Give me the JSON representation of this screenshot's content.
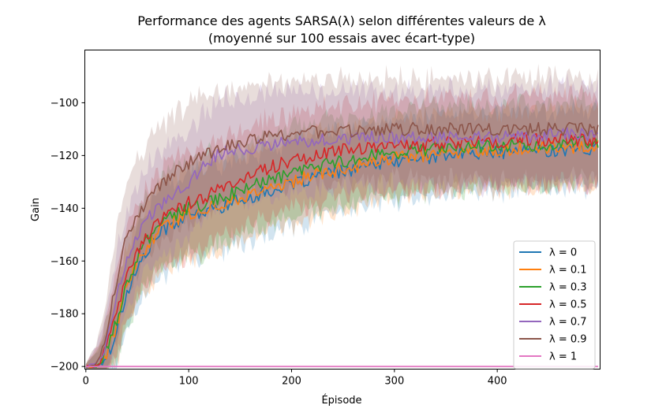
{
  "chart_data": {
    "type": "line",
    "title": "Performance des agents SARSA(λ) selon différentes valeurs de λ",
    "subtitle": "(moyenné sur 100 essais avec écart-type)",
    "xlabel": "Épisode",
    "ylabel": "Gain",
    "xlim": [
      -1,
      500
    ],
    "ylim": [
      -201,
      -80
    ],
    "xticks": [
      0,
      100,
      200,
      300,
      400
    ],
    "yticks": [
      -200,
      -180,
      -160,
      -140,
      -120,
      -100
    ],
    "grid": false,
    "legend_position": "lower-right",
    "shaded_band": "standard deviation",
    "series": [
      {
        "name": "λ = 0",
        "color": "#1f77b4",
        "points": [
          [
            0,
            -200
          ],
          [
            10,
            -200
          ],
          [
            15,
            -199
          ],
          [
            20,
            -196
          ],
          [
            25,
            -192
          ],
          [
            30,
            -186
          ],
          [
            35,
            -179
          ],
          [
            40,
            -172
          ],
          [
            50,
            -163
          ],
          [
            60,
            -156
          ],
          [
            70,
            -150
          ],
          [
            80,
            -147
          ],
          [
            100,
            -143
          ],
          [
            120,
            -141
          ],
          [
            150,
            -137
          ],
          [
            175,
            -134
          ],
          [
            200,
            -131
          ],
          [
            225,
            -128
          ],
          [
            250,
            -126
          ],
          [
            275,
            -124
          ],
          [
            300,
            -122
          ],
          [
            325,
            -121
          ],
          [
            350,
            -120
          ],
          [
            375,
            -119
          ],
          [
            400,
            -119
          ],
          [
            425,
            -118
          ],
          [
            450,
            -118
          ],
          [
            475,
            -118
          ],
          [
            499,
            -117
          ]
        ],
        "std": [
          [
            0,
            1
          ],
          [
            30,
            14
          ],
          [
            60,
            16
          ],
          [
            100,
            17
          ],
          [
            200,
            16
          ],
          [
            300,
            15
          ],
          [
            400,
            15
          ],
          [
            499,
            15
          ]
        ]
      },
      {
        "name": "λ = 0.1",
        "color": "#ff7f0e",
        "points": [
          [
            0,
            -200
          ],
          [
            10,
            -200
          ],
          [
            15,
            -199
          ],
          [
            20,
            -195
          ],
          [
            25,
            -190
          ],
          [
            30,
            -184
          ],
          [
            35,
            -177
          ],
          [
            40,
            -170
          ],
          [
            50,
            -161
          ],
          [
            60,
            -154
          ],
          [
            70,
            -149
          ],
          [
            80,
            -146
          ],
          [
            100,
            -142
          ],
          [
            120,
            -140
          ],
          [
            150,
            -136
          ],
          [
            175,
            -133
          ],
          [
            200,
            -130
          ],
          [
            225,
            -127
          ],
          [
            250,
            -125
          ],
          [
            275,
            -123
          ],
          [
            300,
            -121
          ],
          [
            325,
            -120
          ],
          [
            350,
            -119
          ],
          [
            375,
            -118
          ],
          [
            400,
            -118
          ],
          [
            425,
            -117
          ],
          [
            450,
            -117
          ],
          [
            475,
            -117
          ],
          [
            499,
            -116
          ]
        ],
        "std": [
          [
            0,
            1
          ],
          [
            30,
            14
          ],
          [
            60,
            16
          ],
          [
            100,
            17
          ],
          [
            200,
            16
          ],
          [
            300,
            15
          ],
          [
            400,
            15
          ],
          [
            499,
            15
          ]
        ]
      },
      {
        "name": "λ = 0.3",
        "color": "#2ca02c",
        "points": [
          [
            0,
            -200
          ],
          [
            10,
            -200
          ],
          [
            15,
            -198
          ],
          [
            20,
            -194
          ],
          [
            25,
            -188
          ],
          [
            30,
            -182
          ],
          [
            35,
            -175
          ],
          [
            40,
            -168
          ],
          [
            50,
            -159
          ],
          [
            60,
            -152
          ],
          [
            70,
            -147
          ],
          [
            80,
            -144
          ],
          [
            100,
            -140
          ],
          [
            120,
            -138
          ],
          [
            150,
            -133
          ],
          [
            175,
            -130
          ],
          [
            200,
            -127
          ],
          [
            225,
            -124
          ],
          [
            250,
            -122
          ],
          [
            275,
            -120
          ],
          [
            300,
            -119
          ],
          [
            325,
            -118
          ],
          [
            350,
            -117
          ],
          [
            375,
            -117
          ],
          [
            400,
            -116
          ],
          [
            425,
            -116
          ],
          [
            450,
            -116
          ],
          [
            475,
            -115
          ],
          [
            499,
            -115
          ]
        ],
        "std": [
          [
            0,
            1
          ],
          [
            30,
            15
          ],
          [
            60,
            17
          ],
          [
            100,
            18
          ],
          [
            200,
            17
          ],
          [
            300,
            16
          ],
          [
            400,
            16
          ],
          [
            499,
            16
          ]
        ]
      },
      {
        "name": "λ = 0.5",
        "color": "#d62728",
        "points": [
          [
            0,
            -200
          ],
          [
            10,
            -200
          ],
          [
            15,
            -198
          ],
          [
            20,
            -193
          ],
          [
            25,
            -186
          ],
          [
            30,
            -179
          ],
          [
            35,
            -172
          ],
          [
            40,
            -165
          ],
          [
            50,
            -156
          ],
          [
            60,
            -150
          ],
          [
            70,
            -145
          ],
          [
            80,
            -142
          ],
          [
            100,
            -138
          ],
          [
            120,
            -135
          ],
          [
            150,
            -129
          ],
          [
            175,
            -125
          ],
          [
            200,
            -122
          ],
          [
            225,
            -120
          ],
          [
            250,
            -118
          ],
          [
            275,
            -117
          ],
          [
            300,
            -116
          ],
          [
            325,
            -116
          ],
          [
            350,
            -115
          ],
          [
            375,
            -115
          ],
          [
            400,
            -115
          ],
          [
            425,
            -114
          ],
          [
            450,
            -114
          ],
          [
            475,
            -114
          ],
          [
            499,
            -114
          ]
        ],
        "std": [
          [
            0,
            1
          ],
          [
            30,
            16
          ],
          [
            60,
            18
          ],
          [
            100,
            19
          ],
          [
            200,
            18
          ],
          [
            300,
            17
          ],
          [
            400,
            17
          ],
          [
            499,
            17
          ]
        ]
      },
      {
        "name": "λ = 0.7",
        "color": "#9467bd",
        "points": [
          [
            0,
            -200
          ],
          [
            10,
            -199
          ],
          [
            15,
            -196
          ],
          [
            20,
            -190
          ],
          [
            25,
            -182
          ],
          [
            30,
            -174
          ],
          [
            35,
            -166
          ],
          [
            40,
            -159
          ],
          [
            50,
            -150
          ],
          [
            60,
            -144
          ],
          [
            70,
            -140
          ],
          [
            80,
            -136
          ],
          [
            100,
            -130
          ],
          [
            110,
            -126
          ],
          [
            120,
            -122
          ],
          [
            130,
            -119
          ],
          [
            150,
            -118
          ],
          [
            175,
            -116
          ],
          [
            200,
            -115
          ],
          [
            225,
            -114
          ],
          [
            250,
            -114
          ],
          [
            275,
            -113
          ],
          [
            300,
            -113
          ],
          [
            325,
            -113
          ],
          [
            350,
            -113
          ],
          [
            375,
            -113
          ],
          [
            400,
            -113
          ],
          [
            425,
            -113
          ],
          [
            450,
            -112
          ],
          [
            475,
            -112
          ],
          [
            499,
            -112
          ]
        ],
        "std": [
          [
            0,
            1
          ],
          [
            30,
            18
          ],
          [
            60,
            20
          ],
          [
            100,
            21
          ],
          [
            200,
            19
          ],
          [
            300,
            18
          ],
          [
            400,
            18
          ],
          [
            499,
            18
          ]
        ]
      },
      {
        "name": "λ = 0.9",
        "color": "#8c564b",
        "points": [
          [
            0,
            -200
          ],
          [
            10,
            -199
          ],
          [
            15,
            -195
          ],
          [
            20,
            -187
          ],
          [
            25,
            -177
          ],
          [
            30,
            -167
          ],
          [
            35,
            -158
          ],
          [
            40,
            -151
          ],
          [
            50,
            -143
          ],
          [
            60,
            -138
          ],
          [
            70,
            -133
          ],
          [
            80,
            -128
          ],
          [
            90,
            -125
          ],
          [
            100,
            -123
          ],
          [
            110,
            -121
          ],
          [
            120,
            -119
          ],
          [
            130,
            -117
          ],
          [
            140,
            -116
          ],
          [
            150,
            -115
          ],
          [
            175,
            -113
          ],
          [
            200,
            -112
          ],
          [
            225,
            -111
          ],
          [
            250,
            -111
          ],
          [
            275,
            -110
          ],
          [
            300,
            -110
          ],
          [
            325,
            -110
          ],
          [
            350,
            -110
          ],
          [
            375,
            -110
          ],
          [
            400,
            -110
          ],
          [
            425,
            -110
          ],
          [
            450,
            -110
          ],
          [
            475,
            -110
          ],
          [
            499,
            -110
          ]
        ],
        "std": [
          [
            0,
            1
          ],
          [
            30,
            20
          ],
          [
            60,
            22
          ],
          [
            100,
            22
          ],
          [
            200,
            20
          ],
          [
            300,
            19
          ],
          [
            400,
            19
          ],
          [
            499,
            19
          ]
        ]
      },
      {
        "name": "λ = 1",
        "color": "#e377c2",
        "points": [
          [
            0,
            -200
          ],
          [
            499,
            -200
          ]
        ],
        "std": [
          [
            0,
            0.4
          ],
          [
            499,
            0.4
          ]
        ]
      }
    ]
  }
}
